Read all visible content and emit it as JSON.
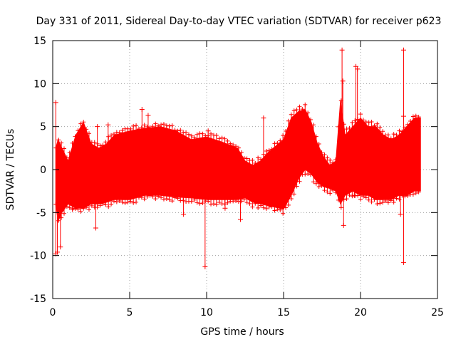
{
  "chart_data": {
    "type": "scatter",
    "title": "Day 331 of 2011, Sidereal Day-to-day VTEC variation (SDTVAR) for receiver p623",
    "xlabel": "GPS time / hours",
    "ylabel": "SDTVAR / TECUs",
    "xlim": [
      0,
      25
    ],
    "ylim": [
      -15,
      15
    ],
    "xticks": [
      0,
      5,
      10,
      15,
      20,
      25
    ],
    "yticks": [
      -15,
      -10,
      -5,
      0,
      5,
      10,
      15
    ],
    "grid": true,
    "marker": "+",
    "color": "#ff0000",
    "series": [
      {
        "name": "SDTVAR",
        "envelope_x": [
          0.2,
          0.35,
          0.6,
          1.0,
          1.5,
          2.0,
          2.5,
          3.0,
          3.5,
          4.0,
          5.0,
          6.0,
          7.0,
          8.0,
          9.0,
          10.0,
          11.0,
          12.0,
          12.5,
          13.0,
          13.5,
          14.0,
          15.0,
          15.5,
          16.0,
          16.4,
          16.8,
          17.2,
          17.6,
          18.0,
          18.4,
          18.7,
          19.0,
          19.5,
          20.0,
          20.5,
          21.0,
          21.5,
          22.0,
          22.5,
          23.0,
          23.5,
          23.9
        ],
        "envelope_upper": [
          2.5,
          3.5,
          2.5,
          1.0,
          4.0,
          5.5,
          3.0,
          2.5,
          3.0,
          4.0,
          4.5,
          4.8,
          5.0,
          4.5,
          3.5,
          3.8,
          3.2,
          2.5,
          1.0,
          0.5,
          1.0,
          2.0,
          3.5,
          6.0,
          6.8,
          7.0,
          5.5,
          3.0,
          1.5,
          0.5,
          1.0,
          8.0,
          4.0,
          5.0,
          6.0,
          5.0,
          5.0,
          4.0,
          3.5,
          4.0,
          5.0,
          6.0,
          6.0
        ],
        "envelope_lower": [
          -4.0,
          -6.0,
          -5.0,
          -4.0,
          -4.5,
          -4.5,
          -4.0,
          -4.0,
          -3.8,
          -3.5,
          -3.5,
          -3.0,
          -3.0,
          -3.2,
          -3.3,
          -3.5,
          -3.5,
          -3.5,
          -3.3,
          -3.8,
          -4.0,
          -4.2,
          -4.6,
          -3.0,
          -1.0,
          0.0,
          -0.5,
          -1.5,
          -2.0,
          -2.2,
          -2.5,
          -4.0,
          -3.0,
          -2.5,
          -3.0,
          -3.0,
          -3.5,
          -3.5,
          -3.5,
          -3.0,
          -3.0,
          -2.5,
          -2.5
        ],
        "outliers": [
          {
            "x": 0.2,
            "y": 7.8
          },
          {
            "x": 0.2,
            "y": -9.8
          },
          {
            "x": 0.3,
            "y": -9.6
          },
          {
            "x": 0.5,
            "y": -9.0
          },
          {
            "x": 1.3,
            "y": -4.5
          },
          {
            "x": 2.8,
            "y": -6.8
          },
          {
            "x": 2.9,
            "y": 5.0
          },
          {
            "x": 3.6,
            "y": 5.2
          },
          {
            "x": 5.8,
            "y": 7.0
          },
          {
            "x": 6.2,
            "y": 6.3
          },
          {
            "x": 8.5,
            "y": -5.2
          },
          {
            "x": 9.9,
            "y": -11.3
          },
          {
            "x": 10.1,
            "y": 4.5
          },
          {
            "x": 11.2,
            "y": -4.5
          },
          {
            "x": 12.2,
            "y": -5.8
          },
          {
            "x": 13.7,
            "y": 6.0
          },
          {
            "x": 18.8,
            "y": 13.9
          },
          {
            "x": 18.85,
            "y": 10.3
          },
          {
            "x": 18.9,
            "y": -6.5
          },
          {
            "x": 19.7,
            "y": 12.0
          },
          {
            "x": 19.8,
            "y": 11.7
          },
          {
            "x": 19.6,
            "y": -3.0
          },
          {
            "x": 22.8,
            "y": 13.9
          },
          {
            "x": 22.8,
            "y": 6.2
          },
          {
            "x": 22.8,
            "y": -10.8
          },
          {
            "x": 22.6,
            "y": -5.2
          }
        ]
      }
    ]
  }
}
